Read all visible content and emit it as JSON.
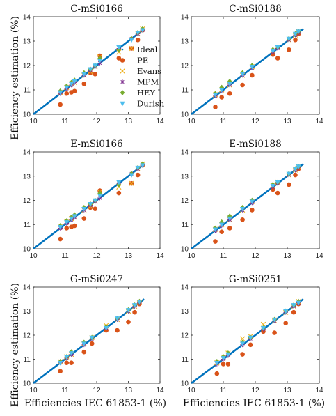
{
  "figure": {
    "ylabel": "Efficiency estimation (%)",
    "xlabel": "Efficiencies IEC 61853-1 (%)"
  },
  "legend": [
    {
      "name": "Ideal",
      "color": "#0072BD",
      "marker": "dot"
    },
    {
      "name": "PE",
      "color": "#D95319",
      "marker": "circle"
    },
    {
      "name": "Evans",
      "color": "#EDB120",
      "marker": "x"
    },
    {
      "name": "MPM",
      "color": "#7E2F8E",
      "marker": "asterisk"
    },
    {
      "name": "HEY",
      "color": "#77AC30",
      "marker": "diamond"
    },
    {
      "name": "Durish",
      "color": "#4DBEEE",
      "marker": "triangle-down"
    }
  ],
  "chart_data": [
    {
      "type": "scatter",
      "title": "C-mSi0166",
      "xlim": [
        10,
        14
      ],
      "ylim": [
        10,
        14
      ],
      "xticks": [
        "10",
        "11",
        "12",
        "13",
        "14"
      ],
      "yticks": [
        "10",
        "11",
        "12",
        "13",
        "14"
      ],
      "ideal_line": {
        "x": [
          10,
          13.5
        ],
        "y": [
          10,
          13.5
        ]
      },
      "x": [
        10.85,
        11.05,
        11.2,
        11.3,
        11.6,
        11.8,
        11.95,
        12.1,
        12.7,
        13.1,
        13.3,
        13.45
      ],
      "series": [
        {
          "name": "PE",
          "values": [
            10.4,
            10.85,
            10.9,
            10.95,
            11.25,
            11.7,
            11.65,
            12.4,
            12.3,
            12.7,
            13.05,
            13.45
          ]
        },
        {
          "name": "Evans",
          "values": [
            10.9,
            11.1,
            11.25,
            11.3,
            11.6,
            11.75,
            11.95,
            12.35,
            12.55,
            12.7,
            13.3,
            13.5
          ]
        },
        {
          "name": "MPM",
          "values": [
            10.85,
            11.05,
            11.2,
            11.3,
            11.6,
            11.8,
            11.95,
            12.1,
            12.7,
            13.1,
            13.3,
            13.45
          ]
        },
        {
          "name": "HEY",
          "values": [
            10.95,
            11.15,
            11.3,
            11.4,
            11.7,
            11.85,
            12.0,
            12.3,
            12.65,
            13.1,
            13.35,
            13.5
          ]
        },
        {
          "name": "Durish",
          "values": [
            10.9,
            11.1,
            11.25,
            11.35,
            11.65,
            11.85,
            12.0,
            12.2,
            12.75,
            13.05,
            13.35,
            13.45
          ]
        }
      ]
    },
    {
      "type": "scatter",
      "title": "C-mSi0188",
      "xlim": [
        10,
        14
      ],
      "ylim": [
        10,
        14
      ],
      "xticks": [
        "10",
        "11",
        "12",
        "13",
        "14"
      ],
      "yticks": [
        "10",
        "11",
        "12",
        "13",
        "14"
      ],
      "ideal_line": {
        "x": [
          10,
          13.5
        ],
        "y": [
          10,
          13.5
        ]
      },
      "x": [
        10.75,
        10.95,
        11.2,
        11.6,
        11.9,
        12.55,
        12.7,
        13.05,
        13.25,
        13.35
      ],
      "series": [
        {
          "name": "PE",
          "values": [
            10.3,
            10.7,
            10.85,
            11.2,
            11.6,
            12.45,
            12.3,
            12.65,
            13.05,
            13.3
          ]
        },
        {
          "name": "Evans",
          "values": [
            10.8,
            11.0,
            11.2,
            11.6,
            11.95,
            12.6,
            12.75,
            13.05,
            13.25,
            13.4
          ]
        },
        {
          "name": "MPM",
          "values": [
            10.75,
            10.95,
            11.2,
            11.6,
            11.9,
            12.55,
            12.7,
            13.05,
            13.25,
            13.35
          ]
        },
        {
          "name": "HEY",
          "values": [
            10.85,
            11.1,
            11.35,
            11.7,
            12.0,
            12.65,
            12.75,
            13.1,
            13.3,
            13.4
          ]
        },
        {
          "name": "Durish",
          "values": [
            10.8,
            11.0,
            11.25,
            11.65,
            11.95,
            12.6,
            12.75,
            13.1,
            13.3,
            13.4
          ]
        }
      ]
    },
    {
      "type": "scatter",
      "title": "E-mSi0166",
      "xlim": [
        10,
        14
      ],
      "ylim": [
        10,
        14
      ],
      "xticks": [
        "10",
        "11",
        "12",
        "13",
        "14"
      ],
      "yticks": [
        "10",
        "11",
        "12",
        "13",
        "14"
      ],
      "ideal_line": {
        "x": [
          10,
          13.5
        ],
        "y": [
          10,
          13.5
        ]
      },
      "x": [
        10.85,
        11.05,
        11.2,
        11.3,
        11.6,
        11.8,
        11.95,
        12.1,
        12.7,
        13.1,
        13.3,
        13.45
      ],
      "series": [
        {
          "name": "PE",
          "values": [
            10.4,
            10.85,
            10.9,
            10.95,
            11.25,
            11.7,
            11.65,
            12.4,
            12.3,
            12.7,
            13.05,
            13.45
          ]
        },
        {
          "name": "Evans",
          "values": [
            10.9,
            11.1,
            11.25,
            11.3,
            11.6,
            11.75,
            11.95,
            12.35,
            12.55,
            12.7,
            13.3,
            13.5
          ]
        },
        {
          "name": "MPM",
          "values": [
            10.85,
            11.05,
            11.2,
            11.3,
            11.6,
            11.8,
            11.95,
            12.1,
            12.7,
            13.1,
            13.3,
            13.45
          ]
        },
        {
          "name": "HEY",
          "values": [
            10.95,
            11.15,
            11.3,
            11.4,
            11.7,
            11.85,
            12.0,
            12.3,
            12.65,
            13.1,
            13.35,
            13.5
          ]
        },
        {
          "name": "Durish",
          "values": [
            10.9,
            11.1,
            11.25,
            11.35,
            11.65,
            11.85,
            12.0,
            12.2,
            12.75,
            13.05,
            13.35,
            13.45
          ]
        }
      ]
    },
    {
      "type": "scatter",
      "title": "E-mSi0188",
      "xlim": [
        10,
        14
      ],
      "ylim": [
        10,
        14
      ],
      "xticks": [
        "10",
        "11",
        "12",
        "13",
        "14"
      ],
      "yticks": [
        "10",
        "11",
        "12",
        "13",
        "14"
      ],
      "ideal_line": {
        "x": [
          10,
          13.5
        ],
        "y": [
          10,
          13.5
        ]
      },
      "x": [
        10.75,
        10.95,
        11.2,
        11.6,
        11.9,
        12.55,
        12.7,
        13.05,
        13.25,
        13.35
      ],
      "series": [
        {
          "name": "PE",
          "values": [
            10.3,
            10.7,
            10.85,
            11.2,
            11.6,
            12.45,
            12.3,
            12.65,
            13.05,
            13.3
          ]
        },
        {
          "name": "Evans",
          "values": [
            10.8,
            11.0,
            11.2,
            11.6,
            11.95,
            12.6,
            12.75,
            13.05,
            13.25,
            13.4
          ]
        },
        {
          "name": "MPM",
          "values": [
            10.75,
            10.95,
            11.2,
            11.6,
            11.9,
            12.55,
            12.7,
            13.05,
            13.25,
            13.35
          ]
        },
        {
          "name": "HEY",
          "values": [
            10.85,
            11.1,
            11.35,
            11.7,
            12.0,
            12.65,
            12.75,
            13.1,
            13.3,
            13.4
          ]
        },
        {
          "name": "Durish",
          "values": [
            10.8,
            11.0,
            11.25,
            11.65,
            11.95,
            12.6,
            12.75,
            13.1,
            13.3,
            13.4
          ]
        }
      ]
    },
    {
      "type": "scatter",
      "title": "G-mSi0247",
      "xlim": [
        10,
        14
      ],
      "ylim": [
        10,
        14
      ],
      "xticks": [
        "10",
        "11",
        "12",
        "13",
        "14"
      ],
      "yticks": [
        "10",
        "11",
        "12",
        "13",
        "14"
      ],
      "ideal_line": {
        "x": [
          10,
          13.5
        ],
        "y": [
          10,
          13.5
        ]
      },
      "x": [
        10.85,
        11.05,
        11.2,
        11.6,
        11.85,
        12.3,
        12.65,
        13.0,
        13.2,
        13.35
      ],
      "series": [
        {
          "name": "PE",
          "values": [
            10.5,
            10.85,
            10.85,
            11.3,
            11.65,
            12.2,
            12.2,
            12.55,
            12.95,
            13.3
          ]
        },
        {
          "name": "Evans",
          "values": [
            10.9,
            11.1,
            11.2,
            11.65,
            11.9,
            12.4,
            12.65,
            13.0,
            13.2,
            13.35
          ]
        },
        {
          "name": "MPM",
          "values": [
            10.85,
            11.05,
            11.2,
            11.6,
            11.85,
            12.3,
            12.65,
            13.0,
            13.2,
            13.35
          ]
        },
        {
          "name": "HEY",
          "values": [
            10.9,
            11.1,
            11.3,
            11.7,
            11.9,
            12.35,
            12.7,
            13.05,
            13.25,
            13.4
          ]
        },
        {
          "name": "Durish",
          "values": [
            10.85,
            11.1,
            11.25,
            11.65,
            11.9,
            12.3,
            12.7,
            13.05,
            13.25,
            13.4
          ]
        }
      ]
    },
    {
      "type": "scatter",
      "title": "G-mSi0251",
      "xlim": [
        10,
        14
      ],
      "ylim": [
        10,
        14
      ],
      "xticks": [
        "10",
        "11",
        "12",
        "13",
        "14"
      ],
      "yticks": [
        "10",
        "11",
        "12",
        "13",
        "14"
      ],
      "ideal_line": {
        "x": [
          10,
          13.5
        ],
        "y": [
          10,
          13.5
        ]
      },
      "x": [
        10.8,
        11.0,
        11.15,
        11.6,
        11.85,
        12.25,
        12.6,
        12.95,
        13.2,
        13.35
      ],
      "series": [
        {
          "name": "PE",
          "values": [
            10.4,
            10.8,
            10.8,
            11.2,
            11.6,
            12.15,
            12.1,
            12.5,
            12.95,
            13.3
          ]
        },
        {
          "name": "Evans",
          "values": [
            10.85,
            11.05,
            11.25,
            11.85,
            11.95,
            12.45,
            12.6,
            12.95,
            13.2,
            13.4
          ]
        },
        {
          "name": "MPM",
          "values": [
            10.8,
            11.0,
            11.15,
            11.6,
            11.85,
            12.25,
            12.6,
            12.95,
            13.2,
            13.35
          ]
        },
        {
          "name": "HEY",
          "values": [
            10.9,
            11.1,
            11.25,
            11.7,
            11.9,
            12.3,
            12.65,
            13.0,
            13.25,
            13.4
          ]
        },
        {
          "name": "Durish",
          "values": [
            10.85,
            11.05,
            11.2,
            11.65,
            11.9,
            12.3,
            12.65,
            13.0,
            13.25,
            13.35
          ]
        }
      ]
    }
  ]
}
